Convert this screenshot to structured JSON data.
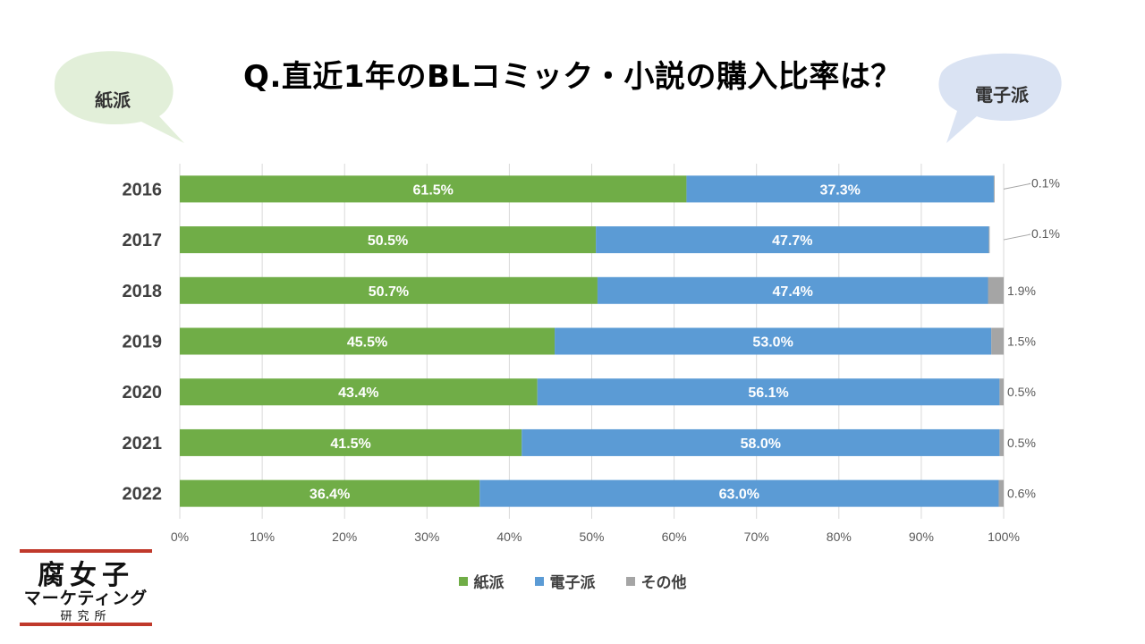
{
  "title": "Q.直近1年のBLコミック・小説の購入比率は？",
  "bubbles": {
    "left": "紙派",
    "right": "電子派"
  },
  "colors": {
    "paper": "#70ad47",
    "digital": "#5b9bd5",
    "other": "#a5a5a5",
    "bubble_left": "#e2efd9",
    "bubble_right": "#dae3f3"
  },
  "logo": {
    "line1": "腐女子",
    "line2": "マーケティング",
    "line3": "研究所"
  },
  "chart_data": {
    "type": "bar",
    "orientation": "horizontal",
    "stacked": "percent",
    "categories": [
      "2016",
      "2017",
      "2018",
      "2019",
      "2020",
      "2021",
      "2022"
    ],
    "series": [
      {
        "name": "紙派",
        "values": [
          61.5,
          50.5,
          50.7,
          45.5,
          43.4,
          41.5,
          36.4
        ],
        "labels": [
          "61.5%",
          "50.5%",
          "50.7%",
          "45.5%",
          "43.4%",
          "41.5%",
          "36.4%"
        ]
      },
      {
        "name": "電子派",
        "values": [
          37.3,
          47.7,
          47.4,
          53.0,
          56.1,
          58.0,
          63.0
        ],
        "labels": [
          "37.3%",
          "47.7%",
          "47.4%",
          "53.0%",
          "56.1%",
          "58.0%",
          "63.0%"
        ]
      },
      {
        "name": "その他",
        "values": [
          0.1,
          0.1,
          1.9,
          1.5,
          0.5,
          0.5,
          0.6
        ],
        "labels": [
          "0.1%",
          "0.1%",
          "1.9%",
          "1.5%",
          "0.5%",
          "0.5%",
          "0.6%"
        ]
      }
    ],
    "xlim": [
      0,
      100
    ],
    "x_ticks": [
      "0%",
      "10%",
      "20%",
      "30%",
      "40%",
      "50%",
      "60%",
      "70%",
      "80%",
      "90%",
      "100%"
    ],
    "grid": true,
    "legend_position": "bottom"
  }
}
